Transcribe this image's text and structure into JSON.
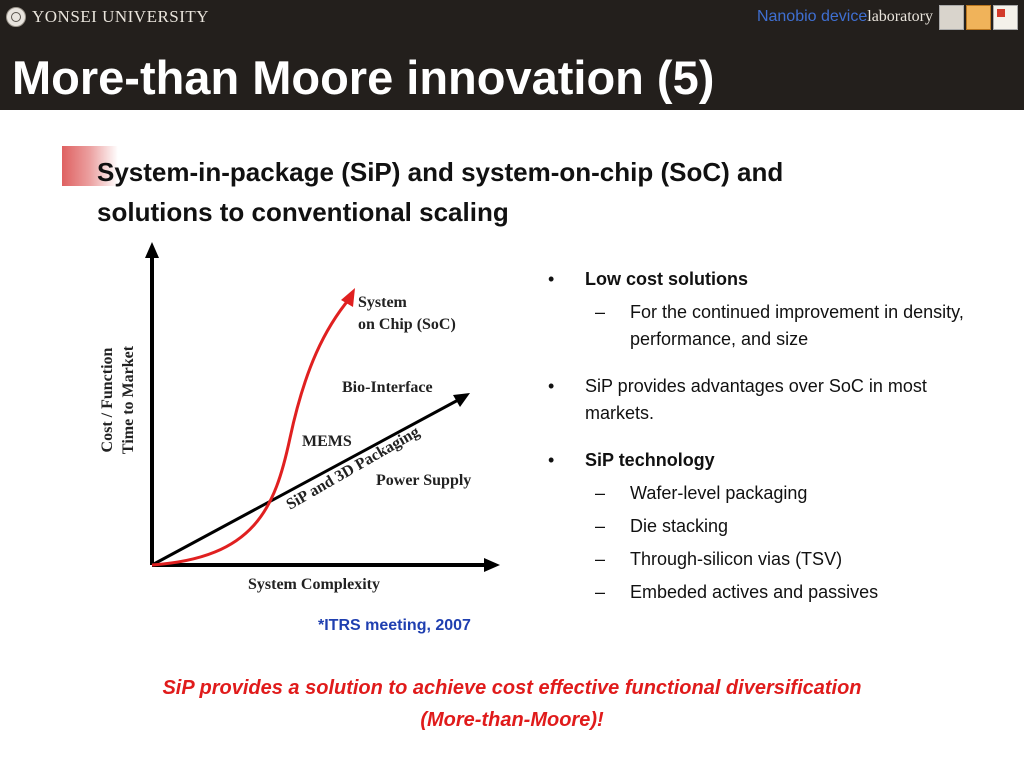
{
  "header": {
    "university": "YONSEI UNIVERSITY",
    "lab_name_a": "Nanobio device",
    "lab_name_b": "laboratory",
    "title": "More-than Moore innovation (5)"
  },
  "subtitle": "System-in-package (SiP) and system-on-chip (SoC) and solutions to conventional scaling",
  "diagram": {
    "y_axis_label_1": "Cost / Function",
    "y_axis_label_2": "Time to Market",
    "x_axis_label": "System Complexity",
    "curve_label_1": "System",
    "curve_label_2": "on Chip (SoC)",
    "line_label": "SiP and 3D Packaging",
    "label_bio": "Bio-Interface",
    "label_mems": "MEMS",
    "label_power": "Power Supply",
    "curve_color": "#e02020"
  },
  "bullets": {
    "b1": "Low cost solutions",
    "b1_sub": "For the continued improvement in density, performance, and size",
    "b2": "SiP provides advantages over SoC in most markets.",
    "b3": "SiP technology",
    "b3_subs": [
      "Wafer-level packaging",
      "Die stacking",
      "Through-silicon vias (TSV)",
      "Embeded actives and passives"
    ]
  },
  "footnote": "*ITRS meeting, 2007",
  "conclusion_1": "SiP provides a solution to achieve cost effective functional diversification",
  "conclusion_2": "(More-than-Moore)!",
  "colors": {
    "header_bg": "#231f1c",
    "accent_red": "#e01b1b",
    "footnote_blue": "#1f3fb0"
  }
}
